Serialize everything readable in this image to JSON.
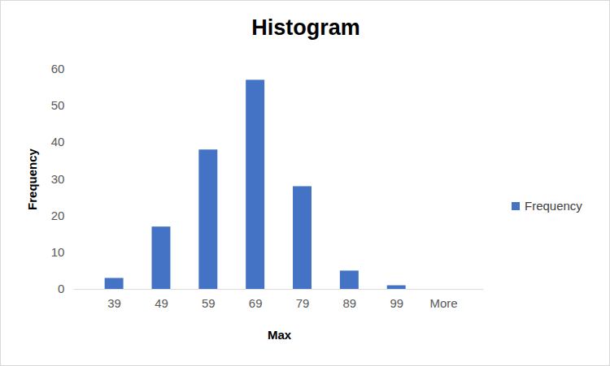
{
  "chart_data": {
    "type": "bar",
    "title": "Histogram",
    "x_label": "Max",
    "y_label": "Frequency",
    "categories": [
      "39",
      "49",
      "59",
      "69",
      "79",
      "89",
      "99",
      "More"
    ],
    "series": [
      {
        "name": "Frequency",
        "color": "#4472c4",
        "values": [
          3,
          17,
          38,
          57,
          28,
          5,
          1,
          0
        ]
      }
    ],
    "ylim": [
      0,
      60
    ],
    "yticks": [
      0,
      10,
      20,
      30,
      40,
      50,
      60
    ],
    "grid": false,
    "legend": "right"
  }
}
